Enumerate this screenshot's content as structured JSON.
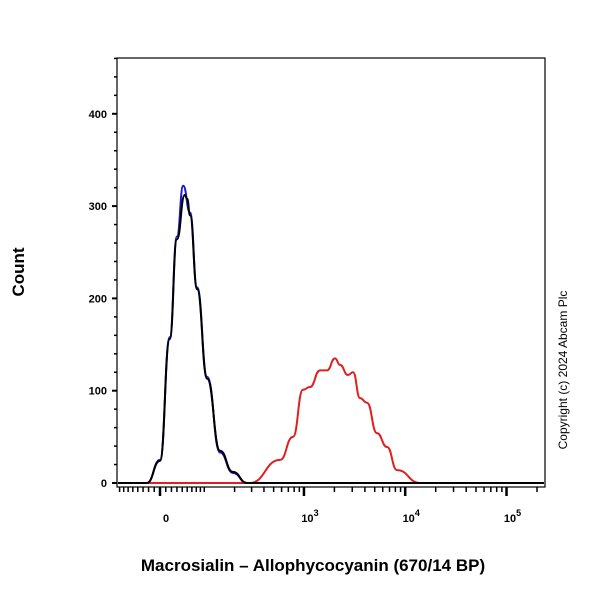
{
  "chart_data": {
    "type": "line",
    "title": "",
    "xlabel": "Macrosialin – Allophycocyanin (670/14 BP)",
    "ylabel": "Count",
    "x_scale": "biexponential",
    "xlim": [
      -87,
      240000
    ],
    "ylim": [
      0,
      470
    ],
    "grid": false,
    "legend": "none",
    "y_ticks": [
      0,
      100,
      200,
      300,
      400
    ],
    "y_tick_labels": [
      "0",
      "100",
      "200",
      "300",
      "400"
    ],
    "x_ticks": [
      0,
      1000,
      10000,
      100000
    ],
    "x_tick_labels": [
      {
        "base": "0",
        "exp": ""
      },
      {
        "base": "10",
        "exp": "3"
      },
      {
        "base": "10",
        "exp": "4"
      },
      {
        "base": "10",
        "exp": "5"
      }
    ],
    "series": [
      {
        "color": "#1a1acc",
        "x": [
          -87,
          -23,
          0,
          17,
          30,
          42,
          56,
          72,
          98,
          139,
          192,
          269,
          240000
        ],
        "y": [
          0,
          0,
          25,
          158,
          267,
          322,
          293,
          212,
          115,
          33,
          11,
          0,
          0
        ]
      },
      {
        "color": "#000000",
        "x": [
          -87,
          -23,
          0,
          17,
          30,
          45,
          50,
          56,
          72,
          98,
          139,
          192,
          269,
          240000
        ],
        "y": [
          0,
          0,
          24,
          156,
          264,
          312,
          308,
          290,
          210,
          113,
          35,
          12,
          0,
          0
        ]
      },
      {
        "color": "#e02020",
        "x": [
          -87,
          269,
          289,
          579,
          779,
          978,
          1148,
          1442,
          1690,
          2029,
          2272,
          2721,
          3055,
          3580,
          4195,
          5259,
          6620,
          8299,
          13984,
          240000
        ],
        "y": [
          0,
          0,
          0,
          25,
          50,
          101,
          104,
          122,
          122,
          135,
          128,
          117,
          120,
          92,
          87,
          54,
          39,
          14,
          0,
          0
        ]
      }
    ]
  },
  "copyright": "Copyright (c) 2024 Abcam Plc"
}
